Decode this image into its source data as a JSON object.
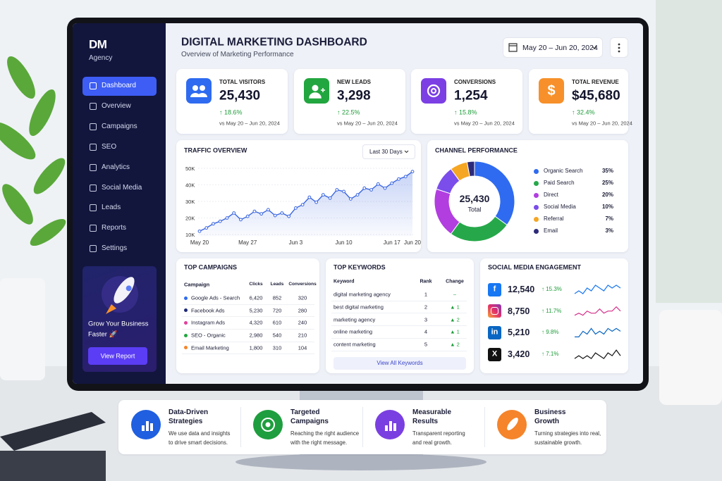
{
  "sidebar": {
    "logo": "DM",
    "subtitle": "Agency",
    "nav": [
      "Dashboard",
      "Overview",
      "Campaigns",
      "SEO",
      "Analytics",
      "Social Media",
      "Leads",
      "Reports",
      "Settings"
    ],
    "active": 0,
    "promo": {
      "lines": [
        "Grow Your Business",
        "Faster 🚀"
      ],
      "button": "View Report"
    }
  },
  "header": {
    "title": "DIGITAL MARKETING DASHBOARD",
    "subtitle": "Overview of Marketing Performance",
    "date_range": "May 20 – Jun 20, 2024"
  },
  "kpis": [
    {
      "label": "TOTAL VISITORS",
      "value": "25,430",
      "change": "↑ 18.6%",
      "period": "vs May 20 – Jun 20, 2024",
      "color": "#2f6bf0"
    },
    {
      "label": "NEW LEADS",
      "value": "3,298",
      "change": "↑ 22.5%",
      "period": "vs May 20 – Jun 20, 2024",
      "color": "#22a63f"
    },
    {
      "label": "CONVERSIONS",
      "value": "1,254",
      "change": "↑ 15.8%",
      "period": "vs May 20 – Jun 20, 2024",
      "color": "#7b3fe4"
    },
    {
      "label": "TOTAL REVENUE",
      "value": "$45,680",
      "change": "↑ 32.4%",
      "period": "vs May 20 – Jun 20, 2024",
      "color": "#f7902a",
      "icon": "$"
    }
  ],
  "traffic": {
    "title": "TRAFFIC OVERVIEW",
    "range": "Last 30 Days",
    "chart": {
      "type": "line",
      "x": [
        0,
        1,
        2,
        3,
        4,
        5,
        6,
        7,
        8,
        9,
        10,
        11,
        12,
        13,
        14,
        15,
        16,
        17,
        18,
        19,
        20,
        21,
        22,
        23,
        24,
        25,
        26,
        27,
        28,
        29,
        30,
        31
      ],
      "values": [
        12000,
        14000,
        16500,
        18000,
        20000,
        23000,
        19000,
        21000,
        24000,
        22500,
        25000,
        21500,
        23000,
        21000,
        26000,
        28000,
        32500,
        29500,
        34000,
        32000,
        37000,
        36000,
        31500,
        34000,
        38000,
        37000,
        40500,
        38000,
        41000,
        43500,
        45000,
        48000
      ],
      "color": "#3a66e0",
      "xlim": [
        0,
        31
      ],
      "xticks": [
        {
          "value": 0,
          "label": "May 20"
        },
        {
          "value": 7,
          "label": "May 27"
        },
        {
          "value": 14,
          "label": "Jun 3"
        },
        {
          "value": 21,
          "label": "Jun 10"
        },
        {
          "value": 28,
          "label": "Jun 17"
        },
        {
          "value": 31,
          "label": "Jun 20"
        }
      ],
      "ylim": [
        9000,
        51000
      ],
      "yticks": [
        {
          "value": 10000,
          "label": "10K"
        },
        {
          "value": 20000,
          "label": "20K"
        },
        {
          "value": 30000,
          "label": "30K"
        },
        {
          "value": 40000,
          "label": "40K"
        },
        {
          "value": 50000,
          "label": "50K"
        }
      ],
      "grid": true
    }
  },
  "channel": {
    "title": "CHANNEL PERFORMANCE",
    "center_value": "25,430",
    "center_label": "Total",
    "chart": {
      "type": "donut",
      "categories": [
        "Organic Search",
        "Paid Search",
        "Direct",
        "Social Media",
        "Referral",
        "Email"
      ],
      "values": [
        35,
        25,
        20,
        10,
        7,
        3
      ],
      "value_labels": [
        "35%",
        "25%",
        "20%",
        "10%",
        "7%",
        "3%"
      ],
      "colors": [
        "#2f6bf0",
        "#26a84a",
        "#b23ee0",
        "#7b4dea",
        "#f5a623",
        "#2d2a7a"
      ]
    }
  },
  "campaigns": {
    "title": "TOP CAMPAIGNS",
    "columns": [
      "Campaign",
      "Clicks",
      "Leads",
      "Conversions"
    ],
    "rows": [
      [
        "Google Ads - Search",
        "6,420",
        "852",
        "320"
      ],
      [
        "Facebook Ads",
        "5,230",
        "720",
        "280"
      ],
      [
        "Instagram Ads",
        "4,320",
        "610",
        "240"
      ],
      [
        "SEO - Organic",
        "2,980",
        "540",
        "210"
      ],
      [
        "Email Marketing",
        "1,800",
        "310",
        "104"
      ]
    ],
    "colors": [
      "#2f6bf0",
      "#1e2a78",
      "#e0409a",
      "#22a63f",
      "#f5842a"
    ]
  },
  "keywords": {
    "title": "TOP KEYWORDS",
    "columns": [
      "Keyword",
      "Rank",
      "Change"
    ],
    "rows": [
      [
        "digital marketing agency",
        "1",
        "–"
      ],
      [
        "best digital marketing",
        "2",
        "▲ 1"
      ],
      [
        "marketing agency",
        "3",
        "▲ 2"
      ],
      [
        "online marketing",
        "4",
        "▲ 1"
      ],
      [
        "content marketing",
        "5",
        "▲ 2"
      ]
    ],
    "button": "View All Keywords"
  },
  "social": {
    "title": "SOCIAL MEDIA ENGAGEMENT",
    "rows": [
      {
        "icon": "f",
        "value": "12,540",
        "change": "↑ 15.3%",
        "color": "#1877f2",
        "trend": [
          5,
          6,
          5,
          7,
          6,
          8,
          7,
          6,
          8,
          7,
          8,
          7
        ]
      },
      {
        "value": "8,750",
        "change": "↑ 11.7%",
        "color": "#d62f8a",
        "trend": [
          4,
          5,
          4,
          6,
          5,
          5,
          7,
          5,
          6,
          6,
          8,
          6
        ]
      },
      {
        "icon": "in",
        "value": "5,210",
        "change": "↑ 9.8%",
        "color": "#0a66c2",
        "trend": [
          4,
          4,
          6,
          5,
          7,
          5,
          6,
          5,
          7,
          6,
          7,
          6
        ]
      },
      {
        "icon": "X",
        "value": "3,420",
        "change": "↑ 7.1%",
        "color": "#111111",
        "trend": [
          4,
          5,
          4,
          5,
          4,
          6,
          5,
          4,
          6,
          5,
          7,
          5
        ]
      }
    ]
  },
  "features": [
    {
      "title": [
        "Data-Driven",
        "Strategies"
      ],
      "text": [
        "We use data and insights",
        "to drive smart decisions."
      ],
      "color": "#1f5fe0"
    },
    {
      "title": [
        "Targeted",
        "Campaigns"
      ],
      "text": [
        "Reaching the right audience",
        "with the right message."
      ],
      "color": "#1e9e3e"
    },
    {
      "title": [
        "Measurable",
        "Results"
      ],
      "text": [
        "Transparent reporting",
        "and real growth."
      ],
      "color": "#7a3fe0"
    },
    {
      "title": [
        "Business",
        "Growth"
      ],
      "text": [
        "Turning strategies into real,",
        "sustainable growth."
      ],
      "color": "#f5842a"
    }
  ]
}
